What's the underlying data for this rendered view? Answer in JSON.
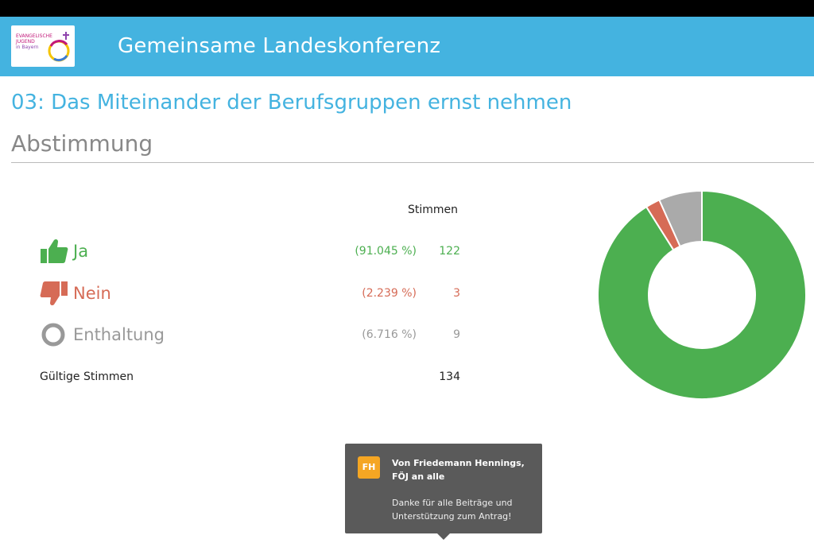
{
  "header": {
    "app_title": "Gemeinsame Landeskonferenz",
    "logo_text_line1": "EVANGELISCHE",
    "logo_text_line2": "JUGEND",
    "logo_text_line3": "in Bayern"
  },
  "page": {
    "title": "03: Das Miteinander der Berufsgruppen ernst nehmen",
    "subtitle": "Abstimmung"
  },
  "results": {
    "column_header": "Stimmen",
    "rows": [
      {
        "label": "Ja",
        "percent": "(91.045 %)",
        "count": "122",
        "icon": "thumbs-up-icon",
        "color": "#4caf50"
      },
      {
        "label": "Nein",
        "percent": "(2.239 %)",
        "count": "3",
        "icon": "thumbs-down-icon",
        "color": "#d66b56"
      },
      {
        "label": "Enthaltung",
        "percent": "(6.716 %)",
        "count": "9",
        "icon": "circle-icon",
        "color": "#999999"
      }
    ],
    "total_label": "Gültige Stimmen",
    "total_value": "134"
  },
  "chart_data": {
    "type": "pie",
    "categories": [
      "Ja",
      "Nein",
      "Enthaltung"
    ],
    "values": [
      122,
      3,
      9
    ],
    "colors": [
      "#4caf50",
      "#d66b56",
      "#aaaaaa"
    ]
  },
  "chat": {
    "avatar_initials": "FH",
    "from": "Von Friedemann Hennings, FÖJ an alle",
    "message": "Danke für alle Beiträge und Unterstützung zum Antrag!"
  },
  "colors": {
    "header_bg": "#44b3e0",
    "accent": "#44b3e0"
  }
}
